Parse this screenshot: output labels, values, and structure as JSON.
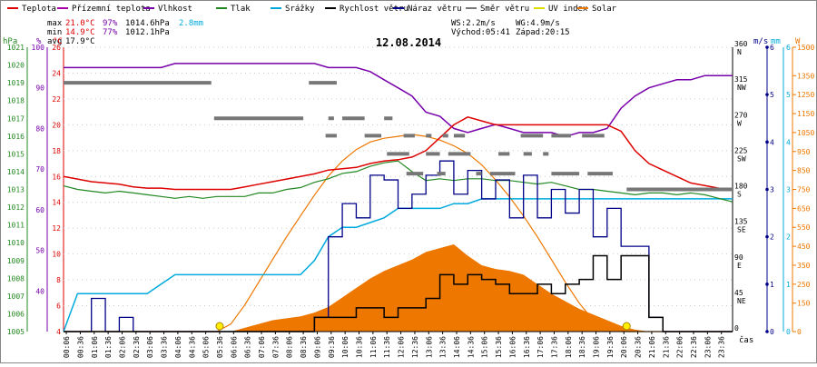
{
  "chart_data": {
    "type": "line",
    "title": "12.08.2014",
    "xlabel": "čas",
    "legend": [
      {
        "label": "Teplota",
        "color": "#dd0000"
      },
      {
        "label": "Přízemní teplota",
        "color": "#aa00aa"
      },
      {
        "label": "Vlhkost",
        "color": "#7700aa"
      },
      {
        "label": "Tlak",
        "color": "#228822"
      },
      {
        "label": "Srážky",
        "color": "#00aadd"
      },
      {
        "label": "Rychlost větru",
        "color": "#000000"
      },
      {
        "label": "Náraz větru",
        "color": "#000088"
      },
      {
        "label": "Směr větru",
        "color": "#777777"
      },
      {
        "label": "UV index",
        "color": "#dddd00"
      },
      {
        "label": "Solar",
        "color": "#ee7700"
      }
    ],
    "stats": {
      "max": {
        "label": "max",
        "temp": "21.0°C",
        "hum": "97%",
        "press": "1014.6hPa",
        "rain": "2.8mm"
      },
      "min": {
        "label": "min",
        "temp": "14.9°C",
        "hum": "77%",
        "press": "1012.1hPa"
      },
      "avg": {
        "label": "avg",
        "temp": "17.9°C"
      },
      "ws": "WS:2.2m/s",
      "wg": "WG:4.9m/s",
      "sunrise": "Východ:05:41",
      "sunset": "Západ:20:15"
    },
    "axes": {
      "pressure": {
        "unit": "hPa",
        "ticks": [
          "1021",
          "1020",
          "1019",
          "1018",
          "1017",
          "1016",
          "1015",
          "1014",
          "1013",
          "1012",
          "1011",
          "1010",
          "1009",
          "1008",
          "1007",
          "1006",
          "1005"
        ],
        "range": [
          1005,
          1021
        ]
      },
      "humidity": {
        "unit": "%",
        "ticks": [
          "100",
          "90",
          "80",
          "70",
          "60",
          "50",
          "40"
        ],
        "range": [
          30,
          100
        ]
      },
      "temperature": {
        "unit": "°C",
        "ticks": [
          "26",
          "24",
          "22",
          "20",
          "18",
          "16",
          "14",
          "12",
          "10",
          "8",
          "6",
          "4"
        ],
        "range": [
          4,
          26
        ]
      },
      "direction": {
        "ticks": [
          {
            "v": "360",
            "d": "N"
          },
          {
            "v": "315",
            "d": "NW"
          },
          {
            "v": "270",
            "d": "W"
          },
          {
            "v": "225",
            "d": "SW"
          },
          {
            "v": "180",
            "d": "S"
          },
          {
            "v": "135",
            "d": "SE"
          },
          {
            "v": "90",
            "d": "E"
          },
          {
            "v": "45",
            "d": "NE"
          },
          {
            "v": "0",
            "d": ""
          }
        ],
        "range": [
          0,
          360
        ]
      },
      "wind": {
        "unit": "m/s",
        "ticks": [
          "6",
          "5",
          "4",
          "3",
          "2",
          "1",
          "0"
        ],
        "range": [
          0,
          6
        ]
      },
      "rain": {
        "unit": "mm",
        "ticks": [
          "6",
          "5",
          "4",
          "3",
          "2",
          "1",
          "0"
        ],
        "range": [
          0,
          6
        ]
      },
      "solar": {
        "unit": "W",
        "ticks": [
          "1500",
          "1350",
          "1250",
          "1150",
          "1050",
          "950",
          "850",
          "750",
          "650",
          "550",
          "450",
          "350",
          "250",
          "150",
          "0"
        ],
        "range": [
          0,
          1500
        ]
      },
      "time_ticks": [
        "00:06",
        "00:36",
        "01:06",
        "01:36",
        "02:06",
        "02:36",
        "03:06",
        "03:36",
        "04:06",
        "04:36",
        "05:06",
        "05:36",
        "06:06",
        "06:36",
        "07:06",
        "07:36",
        "08:06",
        "08:36",
        "09:06",
        "09:36",
        "10:06",
        "10:36",
        "11:06",
        "11:36",
        "12:06",
        "12:36",
        "13:06",
        "13:36",
        "14:06",
        "14:36",
        "15:06",
        "15:36",
        "16:06",
        "16:36",
        "17:06",
        "17:36",
        "18:06",
        "18:36",
        "19:06",
        "19:36",
        "20:06",
        "20:36",
        "21:06",
        "21:36",
        "22:06",
        "22:36",
        "23:06",
        "23:36"
      ]
    },
    "x_hours": [
      0,
      0.5,
      1,
      1.5,
      2,
      2.5,
      3,
      3.5,
      4,
      4.5,
      5,
      5.5,
      6,
      6.5,
      7,
      7.5,
      8,
      8.5,
      9,
      9.5,
      10,
      10.5,
      11,
      11.5,
      12,
      12.5,
      13,
      13.5,
      14,
      14.5,
      15,
      15.5,
      16,
      16.5,
      17,
      17.5,
      18,
      18.5,
      19,
      19.5,
      20,
      20.5,
      21,
      21.5,
      22,
      22.5,
      23,
      23.5,
      24
    ],
    "series": [
      {
        "name": "Teplota",
        "unit": "°C",
        "color": "#dd0000",
        "values": [
          16.0,
          15.8,
          15.6,
          15.5,
          15.4,
          15.2,
          15.1,
          15.1,
          15.0,
          15.0,
          15.0,
          15.0,
          15.0,
          15.2,
          15.4,
          15.6,
          15.8,
          16.0,
          16.2,
          16.5,
          16.6,
          16.7,
          17.0,
          17.2,
          17.3,
          17.5,
          18.0,
          19.0,
          20.0,
          20.6,
          20.3,
          20.0,
          20.0,
          20.0,
          20.0,
          20.0,
          20.0,
          20.0,
          20.0,
          20.0,
          19.5,
          18.0,
          17.0,
          16.5,
          16.0,
          15.5,
          15.3,
          15.1,
          15.0
        ]
      },
      {
        "name": "Vlhkost",
        "unit": "%",
        "color": "#7700aa",
        "values": [
          95,
          95,
          95,
          95,
          95,
          95,
          95,
          95,
          96,
          96,
          96,
          96,
          96,
          96,
          96,
          96,
          96,
          96,
          96,
          95,
          95,
          95,
          94,
          92,
          90,
          88,
          84,
          83,
          80,
          79,
          80,
          81,
          80,
          79,
          79,
          79,
          78,
          79,
          79,
          80,
          85,
          88,
          90,
          91,
          92,
          92,
          93,
          93,
          93
        ]
      },
      {
        "name": "Tlak",
        "unit": "hPa",
        "color": "#228822",
        "values": [
          1013.2,
          1013.0,
          1012.9,
          1012.8,
          1012.9,
          1012.8,
          1012.7,
          1012.6,
          1012.5,
          1012.6,
          1012.5,
          1012.6,
          1012.6,
          1012.6,
          1012.8,
          1012.8,
          1013.0,
          1013.1,
          1013.4,
          1013.6,
          1013.9,
          1014.0,
          1014.3,
          1014.5,
          1014.6,
          1014.0,
          1013.5,
          1013.6,
          1013.5,
          1013.6,
          1013.6,
          1013.5,
          1013.5,
          1013.4,
          1013.3,
          1013.4,
          1013.2,
          1013.0,
          1013.0,
          1012.9,
          1012.8,
          1012.7,
          1012.8,
          1012.8,
          1012.7,
          1012.8,
          1012.7,
          1012.5,
          1012.3
        ]
      },
      {
        "name": "Srážky",
        "unit": "mm",
        "color": "#00aadd",
        "values": [
          0,
          0.8,
          0.8,
          0.8,
          0.8,
          0.8,
          0.8,
          1.0,
          1.2,
          1.2,
          1.2,
          1.2,
          1.2,
          1.2,
          1.2,
          1.2,
          1.2,
          1.2,
          1.5,
          2.0,
          2.2,
          2.2,
          2.3,
          2.4,
          2.6,
          2.6,
          2.6,
          2.6,
          2.7,
          2.7,
          2.8,
          2.8,
          2.8,
          2.8,
          2.8,
          2.8,
          2.8,
          2.8,
          2.8,
          2.8,
          2.8,
          2.8,
          2.8,
          2.8,
          2.8,
          2.8,
          2.8,
          2.8,
          2.8
        ]
      },
      {
        "name": "Rychlost větru",
        "unit": "m/s",
        "color": "#000000",
        "values": [
          0,
          0,
          0,
          0,
          0,
          0,
          0,
          0,
          0,
          0,
          0,
          0,
          0,
          0,
          0,
          0,
          0,
          0,
          0.3,
          0.3,
          0.3,
          0.5,
          0.5,
          0.3,
          0.5,
          0.5,
          0.7,
          1.2,
          1.0,
          1.2,
          1.1,
          1.0,
          0.8,
          0.8,
          1.0,
          0.8,
          1.0,
          1.1,
          1.6,
          1.1,
          1.6,
          1.6,
          0.3,
          0,
          0,
          0,
          0,
          0,
          0
        ]
      },
      {
        "name": "Náraz větru",
        "unit": "m/s",
        "color": "#000088",
        "values": [
          0,
          0,
          0.7,
          0,
          0.3,
          0,
          0,
          0,
          0,
          0,
          0,
          0,
          0,
          0,
          0,
          0,
          0,
          0,
          0.3,
          2.0,
          2.7,
          2.4,
          3.3,
          3.2,
          2.6,
          2.9,
          3.3,
          3.6,
          2.9,
          3.4,
          2.8,
          3.2,
          2.4,
          3.3,
          2.4,
          3.0,
          2.5,
          3.0,
          2.0,
          2.6,
          1.8,
          1.8,
          0.3,
          0,
          0,
          0,
          0,
          0,
          0
        ]
      },
      {
        "name": "Solar",
        "unit": "W/m²",
        "color": "#ee7700",
        "values": [
          0,
          0,
          0,
          0,
          0,
          0,
          0,
          0,
          0,
          0,
          0,
          0,
          0,
          20,
          40,
          60,
          70,
          80,
          100,
          130,
          180,
          230,
          280,
          320,
          350,
          380,
          420,
          440,
          460,
          400,
          350,
          330,
          320,
          300,
          250,
          200,
          160,
          120,
          90,
          60,
          30,
          10,
          0,
          0,
          0,
          0,
          0,
          0,
          0
        ]
      },
      {
        "name": "Solar (max)",
        "unit": "W/m²",
        "color": "#ee7700",
        "values": [
          0,
          0,
          0,
          0,
          0,
          0,
          0,
          0,
          0,
          0,
          0,
          0,
          40,
          140,
          260,
          380,
          500,
          610,
          720,
          820,
          900,
          960,
          1000,
          1020,
          1030,
          1040,
          1030,
          1010,
          980,
          940,
          880,
          800,
          710,
          610,
          500,
          380,
          260,
          150,
          60,
          10,
          0,
          0,
          0,
          0,
          0,
          0,
          0,
          0,
          0
        ]
      }
    ],
    "uv_markers": [
      {
        "x": 5.6,
        "value": 0
      },
      {
        "x": 20.2,
        "value": 0
      }
    ],
    "direction_segments": [
      {
        "x0": 0,
        "x1": 5.3,
        "deg": 315
      },
      {
        "x0": 5.4,
        "x1": 8.6,
        "deg": 270
      },
      {
        "x0": 8.8,
        "x1": 9.8,
        "deg": 315
      },
      {
        "x0": 9.5,
        "x1": 9.7,
        "deg": 270
      },
      {
        "x0": 10.0,
        "x1": 10.8,
        "deg": 270
      },
      {
        "x0": 11.5,
        "x1": 11.8,
        "deg": 270
      },
      {
        "x0": 9.4,
        "x1": 9.8,
        "deg": 248
      },
      {
        "x0": 10.8,
        "x1": 11.4,
        "deg": 248
      },
      {
        "x0": 12.2,
        "x1": 12.6,
        "deg": 248
      },
      {
        "x0": 13.0,
        "x1": 13.2,
        "deg": 248
      },
      {
        "x0": 13.6,
        "x1": 13.8,
        "deg": 248
      },
      {
        "x0": 14.0,
        "x1": 14.4,
        "deg": 248
      },
      {
        "x0": 16.4,
        "x1": 17.2,
        "deg": 248
      },
      {
        "x0": 17.5,
        "x1": 18.2,
        "deg": 248
      },
      {
        "x0": 18.6,
        "x1": 19.4,
        "deg": 248
      },
      {
        "x0": 11.6,
        "x1": 12.4,
        "deg": 225
      },
      {
        "x0": 13.0,
        "x1": 13.5,
        "deg": 225
      },
      {
        "x0": 13.8,
        "x1": 14.6,
        "deg": 225
      },
      {
        "x0": 15.6,
        "x1": 16.0,
        "deg": 225
      },
      {
        "x0": 16.5,
        "x1": 16.8,
        "deg": 225
      },
      {
        "x0": 17.2,
        "x1": 17.4,
        "deg": 225
      },
      {
        "x0": 12.3,
        "x1": 12.9,
        "deg": 200
      },
      {
        "x0": 13.4,
        "x1": 13.7,
        "deg": 200
      },
      {
        "x0": 14.8,
        "x1": 15.0,
        "deg": 200
      },
      {
        "x0": 15.3,
        "x1": 16.2,
        "deg": 200
      },
      {
        "x0": 17.5,
        "x1": 18.5,
        "deg": 200
      },
      {
        "x0": 18.8,
        "x1": 19.7,
        "deg": 200
      },
      {
        "x0": 20.2,
        "x1": 24,
        "deg": 180
      }
    ]
  }
}
